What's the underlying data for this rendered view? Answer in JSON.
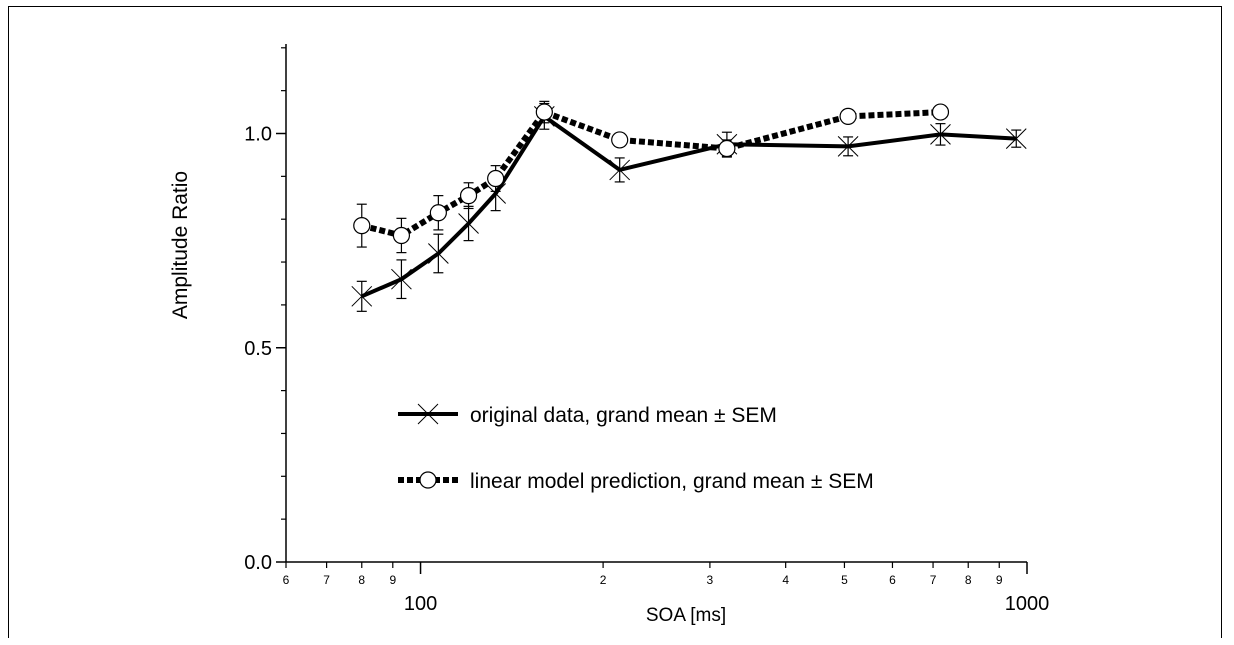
{
  "chart_data": {
    "type": "line",
    "xscale": "log",
    "xlabel": "SOA [ms]",
    "ylabel": "Amplitude Ratio",
    "xlim": [
      60,
      1000
    ],
    "ylim": [
      0.0,
      1.2
    ],
    "grid": false,
    "legend_position": "center",
    "y_ticks": [
      {
        "value": 0.0,
        "label": "0.0"
      },
      {
        "value": 0.5,
        "label": "0.5"
      },
      {
        "value": 1.0,
        "label": "1.0"
      }
    ],
    "x_major_ticks": [
      {
        "value": 100,
        "label": "100"
      },
      {
        "value": 1000,
        "label": "1000"
      }
    ],
    "x_minor_ticks": [
      {
        "value": 60,
        "label": "6"
      },
      {
        "value": 70,
        "label": "7"
      },
      {
        "value": 80,
        "label": "8"
      },
      {
        "value": 90,
        "label": "9"
      },
      {
        "value": 200,
        "label": "2"
      },
      {
        "value": 300,
        "label": "3"
      },
      {
        "value": 400,
        "label": "4"
      },
      {
        "value": 500,
        "label": "5"
      },
      {
        "value": 600,
        "label": "6"
      },
      {
        "value": 700,
        "label": "7"
      },
      {
        "value": 800,
        "label": "8"
      },
      {
        "value": 900,
        "label": "9"
      }
    ],
    "series": [
      {
        "name": "original data, grand mean ± SEM",
        "marker": "x",
        "line_style": "solid",
        "color": "#000000",
        "x": [
          80,
          93,
          107,
          120,
          133,
          160,
          213,
          320,
          507,
          720,
          960
        ],
        "y": [
          0.62,
          0.66,
          0.72,
          0.79,
          0.86,
          1.04,
          0.915,
          0.975,
          0.97,
          0.998,
          0.988
        ],
        "err": [
          0.035,
          0.045,
          0.045,
          0.04,
          0.04,
          0.03,
          0.028,
          0.028,
          0.022,
          0.025,
          0.02
        ]
      },
      {
        "name": "linear model prediction, grand mean ± SEM",
        "marker": "circle",
        "line_style": "dashed",
        "color": "#000000",
        "x": [
          80,
          93,
          107,
          120,
          133,
          160,
          213,
          320,
          507,
          720
        ],
        "y": [
          0.785,
          0.762,
          0.815,
          0.855,
          0.895,
          1.05,
          0.985,
          0.965,
          1.04,
          1.05
        ],
        "err": [
          0.05,
          0.04,
          0.04,
          0.03,
          0.03,
          0.025,
          0.015,
          0.02,
          0.015,
          0.015
        ]
      }
    ]
  }
}
